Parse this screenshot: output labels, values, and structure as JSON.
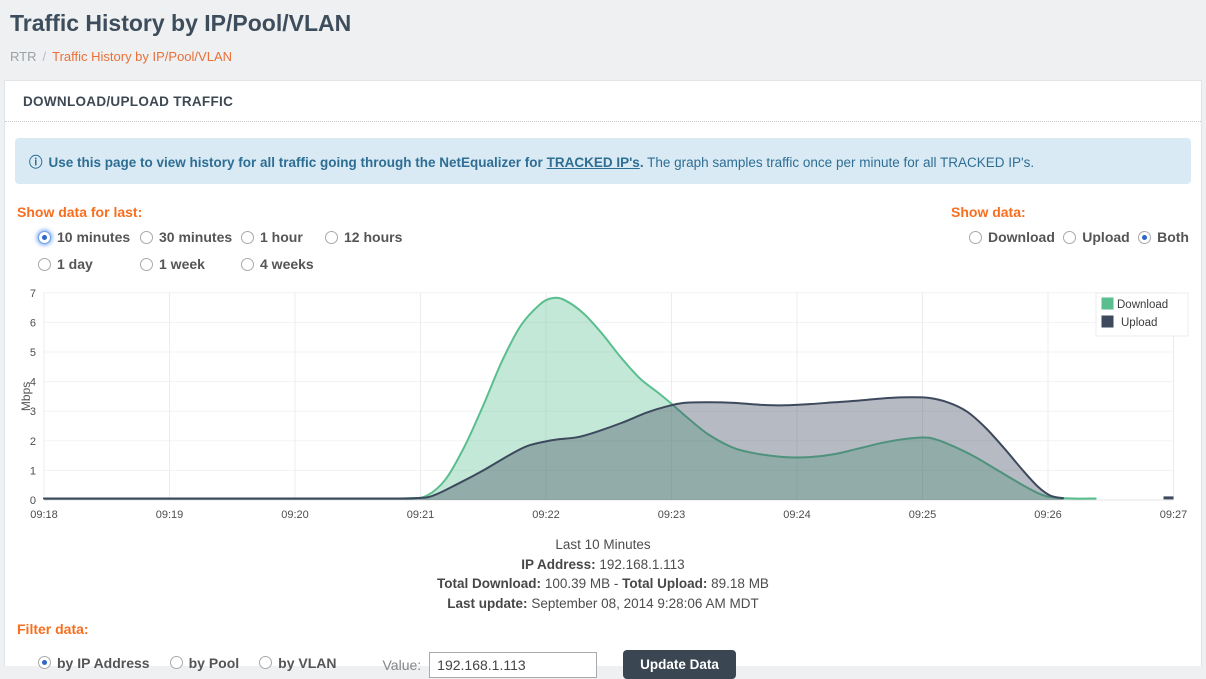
{
  "page": {
    "title": "Traffic History by IP/Pool/VLAN",
    "breadcrumb": {
      "root": "RTR",
      "separator": "/",
      "current": "Traffic History by IP/Pool/VLAN"
    }
  },
  "panel": {
    "header": "DOWNLOAD/UPLOAD TRAFFIC"
  },
  "banner": {
    "icon_glyph": "ⓘ",
    "bold_text": "Use this page to view history for all traffic going through the NetEqualizer for",
    "link_text": "TRACKED IP's",
    "bold_suffix": ".",
    "normal_text": "The graph samples traffic once per minute for all TRACKED IP's."
  },
  "controls": {
    "period": {
      "label": "Show data for last:",
      "options": [
        {
          "label": "10 minutes",
          "selected": true,
          "focused": true
        },
        {
          "label": "30 minutes",
          "selected": false
        },
        {
          "label": "1 hour",
          "selected": false
        },
        {
          "label": "12 hours",
          "selected": false
        },
        {
          "label": "1 day",
          "selected": false
        },
        {
          "label": "1 week",
          "selected": false
        },
        {
          "label": "4 weeks",
          "selected": false
        }
      ]
    },
    "direction": {
      "label": "Show data:",
      "options": [
        {
          "label": "Download",
          "selected": false
        },
        {
          "label": "Upload",
          "selected": false
        },
        {
          "label": "Both",
          "selected": true
        }
      ]
    }
  },
  "chart_data": {
    "type": "area",
    "title": "",
    "xlabel": "",
    "ylabel": "Mbps",
    "ylim": [
      0,
      7
    ],
    "yticks": [
      0,
      1,
      2,
      3,
      4,
      5,
      6,
      7
    ],
    "xticks": [
      "09:18",
      "09:19",
      "09:20",
      "09:21",
      "09:22",
      "09:23",
      "09:24",
      "09:25",
      "09:26",
      "09:27"
    ],
    "x_unit": "minutes after 09:18",
    "grid": true,
    "legend_position": "top-right",
    "series": [
      {
        "name": "Download",
        "color": "#5abe8e",
        "fill": "rgba(87,189,140,0.35)",
        "points": [
          [
            0,
            0.05
          ],
          [
            0.5,
            0.05
          ],
          [
            1,
            0.05
          ],
          [
            1.5,
            0.05
          ],
          [
            2,
            0.05
          ],
          [
            2.5,
            0.05
          ],
          [
            2.9,
            0.06
          ],
          [
            3.05,
            0.15
          ],
          [
            3.2,
            0.7
          ],
          [
            3.35,
            1.8
          ],
          [
            3.5,
            3.2
          ],
          [
            3.65,
            4.7
          ],
          [
            3.8,
            5.9
          ],
          [
            3.95,
            6.6
          ],
          [
            4.05,
            6.82
          ],
          [
            4.15,
            6.75
          ],
          [
            4.3,
            6.3
          ],
          [
            4.45,
            5.6
          ],
          [
            4.6,
            4.8
          ],
          [
            4.75,
            4.1
          ],
          [
            4.9,
            3.6
          ],
          [
            5.0,
            3.25
          ],
          [
            5.15,
            2.7
          ],
          [
            5.3,
            2.2
          ],
          [
            5.5,
            1.75
          ],
          [
            5.7,
            1.55
          ],
          [
            5.9,
            1.45
          ],
          [
            6.1,
            1.45
          ],
          [
            6.3,
            1.55
          ],
          [
            6.5,
            1.75
          ],
          [
            6.7,
            1.95
          ],
          [
            6.9,
            2.08
          ],
          [
            7.05,
            2.1
          ],
          [
            7.2,
            1.9
          ],
          [
            7.4,
            1.5
          ],
          [
            7.6,
            1.0
          ],
          [
            7.8,
            0.5
          ],
          [
            7.95,
            0.18
          ],
          [
            8.05,
            0.08
          ],
          [
            8.2,
            0.05
          ],
          [
            8.38,
            0.05
          ]
        ]
      },
      {
        "name": "Upload",
        "color": "#3d495d",
        "fill": "rgba(62,74,94,0.38)",
        "points": [
          [
            0,
            0.05
          ],
          [
            0.5,
            0.05
          ],
          [
            1,
            0.05
          ],
          [
            1.5,
            0.05
          ],
          [
            2,
            0.05
          ],
          [
            2.5,
            0.05
          ],
          [
            2.95,
            0.06
          ],
          [
            3.1,
            0.15
          ],
          [
            3.3,
            0.55
          ],
          [
            3.5,
            1.0
          ],
          [
            3.7,
            1.5
          ],
          [
            3.85,
            1.82
          ],
          [
            4.0,
            1.98
          ],
          [
            4.1,
            2.05
          ],
          [
            4.25,
            2.12
          ],
          [
            4.4,
            2.3
          ],
          [
            4.6,
            2.6
          ],
          [
            4.8,
            2.95
          ],
          [
            4.95,
            3.15
          ],
          [
            5.1,
            3.28
          ],
          [
            5.3,
            3.3
          ],
          [
            5.5,
            3.28
          ],
          [
            5.7,
            3.22
          ],
          [
            5.9,
            3.2
          ],
          [
            6.1,
            3.24
          ],
          [
            6.3,
            3.3
          ],
          [
            6.5,
            3.36
          ],
          [
            6.7,
            3.44
          ],
          [
            6.9,
            3.47
          ],
          [
            7.05,
            3.45
          ],
          [
            7.2,
            3.3
          ],
          [
            7.35,
            3.0
          ],
          [
            7.5,
            2.45
          ],
          [
            7.65,
            1.75
          ],
          [
            7.8,
            1.0
          ],
          [
            7.92,
            0.45
          ],
          [
            8.02,
            0.15
          ],
          [
            8.12,
            0.06
          ]
        ],
        "extra_segment": [
          [
            8.92,
            0.07
          ],
          [
            9.0,
            0.07
          ]
        ]
      }
    ],
    "legend": [
      "Download",
      "Upload"
    ]
  },
  "summary": {
    "line1": "Last 10 Minutes",
    "ip_label": "IP Address:",
    "ip_value": "192.168.1.113",
    "dl_label": "Total Download:",
    "dl_value": "100.39 MB",
    "dash": "-",
    "ul_label": "Total Upload:",
    "ul_value": "89.18 MB",
    "lu_label": "Last update:",
    "lu_value": "September 08, 2014 9:28:06 AM MDT"
  },
  "filter": {
    "label": "Filter data:",
    "options": [
      {
        "label": "by IP Address",
        "selected": true
      },
      {
        "label": "by Pool",
        "selected": false
      },
      {
        "label": "by VLAN",
        "selected": false
      }
    ],
    "value_label": "Value:",
    "value": "192.168.1.113",
    "button_label": "Update Data"
  },
  "colors": {
    "accent_orange": "#f86e1e",
    "breadcrumb_link": "#e8713b",
    "banner_bg": "#d9eaf5",
    "banner_text": "#2e6e93",
    "button_bg": "#3a4651",
    "download_stroke": "#5abe8e",
    "upload_stroke": "#3d495d",
    "page_bg": "#eef0f1",
    "title_text": "#3e4d5c"
  }
}
